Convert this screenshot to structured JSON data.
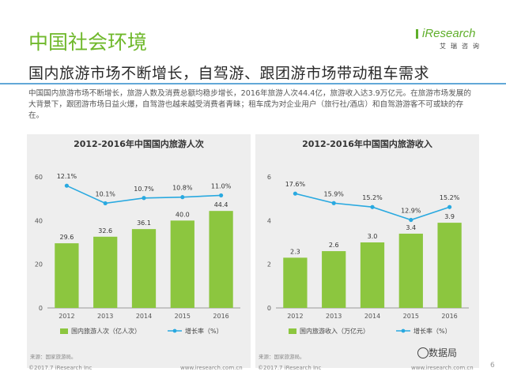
{
  "section_title": "中国社会环境",
  "logo": {
    "main": "iResearch",
    "sub": "艾瑞咨询"
  },
  "headline": "国内旅游市场不断增长，自驾游、跟团游市场带动租车需求",
  "intro": "中国国内旅游市场不断增长，旅游人数及消费总额均稳步增长，2016年旅游人次44.4亿，旅游收入达3.9万亿元。在旅游市场发展的大背景下，跟团游市场日益火爆，自驾游也越来越受消费者青睐；租车成为对企业用户（旅行社/酒店）和自驾游游客不可或缺的存在。",
  "footer": {
    "copyright": "©2017.7 iResearch Inc",
    "website": "www.iresearch.com.cn",
    "page": "6",
    "watermark": "数据局"
  },
  "colors": {
    "bar": "#8cc63f",
    "line": "#29a9e0",
    "accent": "#6fb82b",
    "divider": "#62a8d8"
  },
  "chart_data": [
    {
      "type": "bar",
      "title": "2012-2016年中国国内旅游人次",
      "categories": [
        "2012",
        "2013",
        "2014",
        "2015",
        "2016"
      ],
      "series": [
        {
          "name": "国内旅游人次（亿人次）",
          "values": [
            29.6,
            32.6,
            36.1,
            40.0,
            44.4
          ],
          "labels": [
            "29.6",
            "32.6",
            "36.1",
            "40.0",
            "44.4"
          ]
        }
      ],
      "line_series": {
        "name": "增长率（%）",
        "values": [
          12.1,
          10.1,
          10.7,
          10.8,
          11.0
        ],
        "labels": [
          "12.1%",
          "10.1%",
          "10.7%",
          "10.8%",
          "11.0%"
        ],
        "range": [
          0,
          14
        ]
      },
      "yticks": [
        "0",
        "20",
        "40",
        "60"
      ],
      "ylim": [
        0,
        60
      ],
      "source": "来源：国家旅游局。",
      "legend_position": "bottom",
      "grid": false
    },
    {
      "type": "bar",
      "title": "2012-2016年中国国内旅游收入",
      "categories": [
        "2012",
        "2013",
        "2014",
        "2015",
        "2016"
      ],
      "series": [
        {
          "name": "国内旅游收入（万亿元）",
          "values": [
            2.3,
            2.6,
            3.0,
            3.4,
            3.9
          ],
          "labels": [
            "2.3",
            "2.6",
            "3.0",
            "3.4",
            "3.9"
          ]
        }
      ],
      "line_series": {
        "name": "增长率（%）",
        "values": [
          17.6,
          15.9,
          15.2,
          12.9,
          15.2
        ],
        "labels": [
          "17.6%",
          "15.9%",
          "15.2%",
          "12.9%",
          "15.2%"
        ],
        "range": [
          0,
          22
        ]
      },
      "yticks": [
        "0",
        "2",
        "4",
        "6"
      ],
      "ylim": [
        0,
        6
      ],
      "source": "来源：国家旅游局。",
      "legend_position": "bottom",
      "grid": false
    }
  ]
}
